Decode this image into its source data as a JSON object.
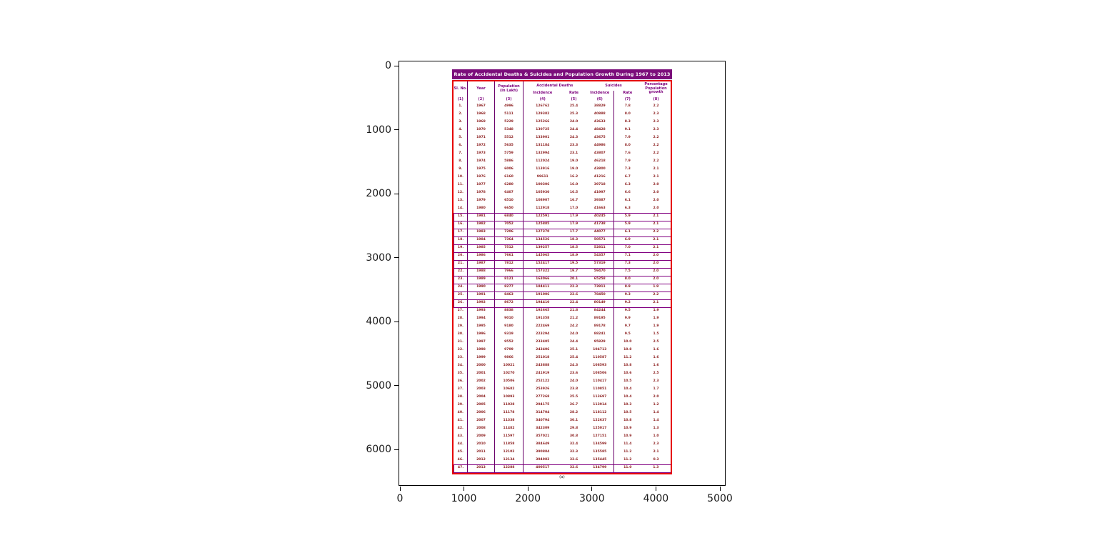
{
  "axes": {
    "x_tick_labels": [
      "0",
      "1000",
      "2000",
      "3000",
      "4000",
      "5000"
    ],
    "y_tick_labels": [
      "0",
      "1000",
      "2000",
      "3000",
      "4000",
      "5000",
      "6000"
    ]
  },
  "chart_data": {
    "type": "table",
    "title": "Rate of Accidental Deaths & Suicides and Population Growth During 1967 to 2013",
    "caption": "(a)",
    "legend_position": "none",
    "header": {
      "sl_no": "Sl. No.",
      "year": "Year",
      "population": "Population (in Lakh)",
      "accidental_group": "Accidental Deaths",
      "suicides_group": "Suicides",
      "incidence": "Incidence",
      "rate": "Rate",
      "growth": "Percentage Population growth",
      "numbers": [
        "(1)",
        "(2)",
        "(3)",
        "(4)",
        "(5)",
        "(6)",
        "(7)",
        "(8)"
      ]
    },
    "highlighted_rows": [
      15,
      16,
      17,
      18,
      19,
      20,
      21,
      22,
      23,
      24,
      25,
      26,
      47
    ],
    "rows": [
      [
        "1.",
        "1967",
        "4996",
        "126762",
        "25.4",
        "38829",
        "7.8",
        "2.2"
      ],
      [
        "2.",
        "1968",
        "5111",
        "129382",
        "25.3",
        "40888",
        "8.0",
        "2.3"
      ],
      [
        "3.",
        "1969",
        "5229",
        "125266",
        "24.0",
        "43633",
        "8.3",
        "2.3"
      ],
      [
        "4.",
        "1970",
        "5348",
        "130725",
        "24.4",
        "48428",
        "9.1",
        "2.3"
      ],
      [
        "5.",
        "1971",
        "5512",
        "133901",
        "24.3",
        "43675",
        "7.9",
        "2.2"
      ],
      [
        "6.",
        "1972",
        "5635",
        "131184",
        "23.3",
        "44986",
        "8.0",
        "2.2"
      ],
      [
        "7.",
        "1973",
        "5759",
        "132994",
        "23.1",
        "43807",
        "7.6",
        "2.2"
      ],
      [
        "8.",
        "1974",
        "5886",
        "112024",
        "19.0",
        "46218",
        "7.9",
        "2.2"
      ],
      [
        "9.",
        "1975",
        "6006",
        "113916",
        "19.0",
        "43800",
        "7.3",
        "2.1"
      ],
      [
        "10.",
        "1976",
        "6160",
        "99611",
        "16.2",
        "41216",
        "6.7",
        "2.1"
      ],
      [
        "11.",
        "1977",
        "6280",
        "100306",
        "16.0",
        "39718",
        "6.3",
        "2.0"
      ],
      [
        "12.",
        "1978",
        "6407",
        "105930",
        "16.5",
        "41997",
        "6.6",
        "2.0"
      ],
      [
        "13.",
        "1979",
        "6510",
        "108907",
        "16.7",
        "39387",
        "6.1",
        "2.0"
      ],
      [
        "14.",
        "1980",
        "6650",
        "112918",
        "17.0",
        "41663",
        "6.3",
        "2.0"
      ],
      [
        "15.",
        "1981",
        "6840",
        "122591",
        "17.9",
        "40245",
        "5.9",
        "2.1"
      ],
      [
        "16.",
        "1982",
        "7052",
        "125885",
        "17.9",
        "41738",
        "5.9",
        "2.1"
      ],
      [
        "17.",
        "1983",
        "7206",
        "127370",
        "17.7",
        "44077",
        "6.1",
        "2.2"
      ],
      [
        "18.",
        "1984",
        "7364",
        "134526",
        "18.3",
        "50571",
        "6.9",
        "2.1"
      ],
      [
        "19.",
        "1985",
        "7512",
        "139257",
        "18.5",
        "52811",
        "7.0",
        "2.1"
      ],
      [
        "20.",
        "1986",
        "7661",
        "145065",
        "18.9",
        "54357",
        "7.1",
        "2.0"
      ],
      [
        "21.",
        "1987",
        "7812",
        "152417",
        "19.5",
        "57319",
        "7.3",
        "2.0"
      ],
      [
        "22.",
        "1988",
        "7966",
        "157322",
        "19.7",
        "59470",
        "7.5",
        "2.0"
      ],
      [
        "23.",
        "1989",
        "8121",
        "163066",
        "20.1",
        "65258",
        "8.0",
        "2.0"
      ],
      [
        "24.",
        "1990",
        "8277",
        "184411",
        "22.3",
        "73911",
        "8.9",
        "1.9"
      ],
      [
        "25.",
        "1991",
        "8463",
        "191006",
        "22.6",
        "78450",
        "9.3",
        "2.2"
      ],
      [
        "26.",
        "1992",
        "8672",
        "194410",
        "22.4",
        "80149",
        "9.2",
        "2.1"
      ],
      [
        "27.",
        "1993",
        "8838",
        "192665",
        "21.8",
        "84244",
        "9.5",
        "1.9"
      ],
      [
        "28.",
        "1994",
        "9010",
        "191358",
        "21.2",
        "89195",
        "9.9",
        "1.9"
      ],
      [
        "29.",
        "1995",
        "9180",
        "222469",
        "24.2",
        "89178",
        "9.7",
        "1.9"
      ],
      [
        "30.",
        "1996",
        "9319",
        "223294",
        "24.0",
        "88241",
        "9.5",
        "1.5"
      ],
      [
        "31.",
        "1997",
        "9552",
        "233405",
        "24.4",
        "95829",
        "10.0",
        "2.5"
      ],
      [
        "32.",
        "1998",
        "9709",
        "243406",
        "25.1",
        "104713",
        "10.8",
        "1.6"
      ],
      [
        "33.",
        "1999",
        "9866",
        "251018",
        "25.4",
        "110587",
        "11.2",
        "1.6"
      ],
      [
        "34.",
        "2000",
        "10021",
        "243888",
        "24.3",
        "108593",
        "10.8",
        "1.6"
      ],
      [
        "35.",
        "2001",
        "10270",
        "241919",
        "23.6",
        "108506",
        "10.6",
        "2.5"
      ],
      [
        "36.",
        "2002",
        "10506",
        "252122",
        "24.0",
        "110417",
        "10.5",
        "2.3"
      ],
      [
        "37.",
        "2003",
        "10682",
        "253926",
        "23.8",
        "110851",
        "10.4",
        "1.7"
      ],
      [
        "38.",
        "2004",
        "10893",
        "277268",
        "25.5",
        "113697",
        "10.4",
        "2.0"
      ],
      [
        "39.",
        "2005",
        "11028",
        "294175",
        "26.7",
        "113914",
        "10.3",
        "1.2"
      ],
      [
        "40.",
        "2006",
        "11178",
        "314704",
        "28.2",
        "118112",
        "10.5",
        "1.4"
      ],
      [
        "41.",
        "2007",
        "11338",
        "340794",
        "30.1",
        "122637",
        "10.8",
        "1.4"
      ],
      [
        "42.",
        "2008",
        "11482",
        "342309",
        "29.8",
        "125017",
        "10.9",
        "1.3"
      ],
      [
        "43.",
        "2009",
        "11597",
        "357021",
        "30.8",
        "127151",
        "10.9",
        "1.0"
      ],
      [
        "44.",
        "2010",
        "11858",
        "384649",
        "32.4",
        "134599",
        "11.4",
        "2.3"
      ],
      [
        "45.",
        "2011",
        "12102",
        "390884",
        "32.3",
        "135585",
        "11.2",
        "2.1"
      ],
      [
        "46.",
        "2012",
        "12134",
        "394982",
        "32.6",
        "135445",
        "11.2",
        "0.3"
      ],
      [
        "47.",
        "2013",
        "12288",
        "400517",
        "32.6",
        "134799",
        "11.0",
        "1.3"
      ]
    ],
    "colors": {
      "title_bg": "#7b0d7b",
      "title_text": "#ffffff",
      "outer_border": "#e60000",
      "inner_line": "#6a006a",
      "header_text": "#7c007c",
      "data_text": "#8b1d1d",
      "highlight_border": "#800080"
    }
  }
}
